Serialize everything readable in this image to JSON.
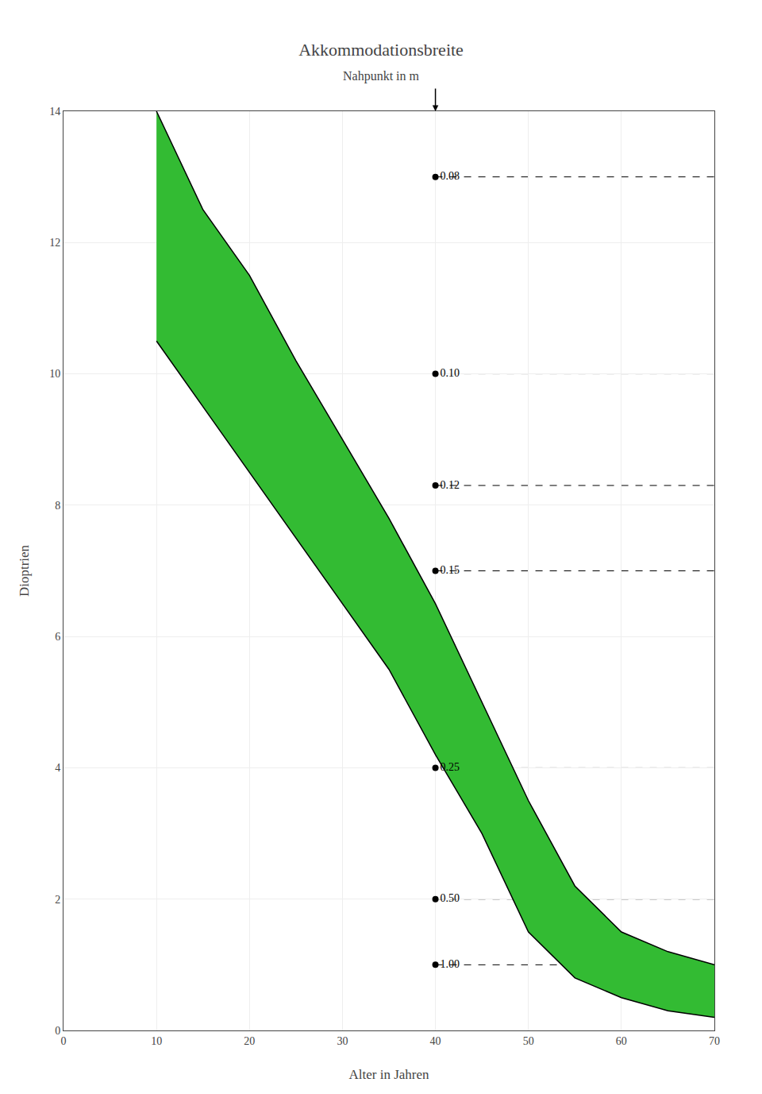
{
  "chart_data": {
    "type": "area",
    "title": "Akkommodationsbreite",
    "subtitle": "Nahpunkt in m",
    "x_label": "Alter in Jahren",
    "y_label": "Dioptrien",
    "x": [
      10,
      15,
      20,
      25,
      30,
      35,
      40,
      45,
      50,
      55,
      60,
      65,
      70
    ],
    "series": [
      {
        "type": "line",
        "color": "#000000",
        "values": [
          14.0,
          12.5,
          11.5,
          10.2,
          9.0,
          7.8,
          6.5,
          5.0,
          3.5,
          2.2,
          1.5,
          1.2,
          1.0
        ]
      },
      {
        "type": "line",
        "color": "#000000",
        "values": [
          10.5,
          9.5,
          8.5,
          7.5,
          6.5,
          5.5,
          4.2,
          3.0,
          1.5,
          0.8,
          0.5,
          0.3,
          0.2
        ]
      }
    ],
    "color": "#33bb33",
    "annotations": [
      {
        "x": 40,
        "y": 13.0,
        "text": "0.08"
      },
      {
        "x": 40,
        "y": 10.0,
        "text": "0.10"
      },
      {
        "x": 40,
        "y": 8.3,
        "text": "0.12"
      },
      {
        "x": 40,
        "y": 7.0,
        "text": "0.15"
      },
      {
        "x": 40,
        "y": 4.0,
        "text": "0.25"
      },
      {
        "x": 40,
        "y": 2.0,
        "text": "0.50"
      },
      {
        "x": 40,
        "y": 1.0,
        "text": "1.00"
      }
    ],
    "xlim": [
      0,
      70
    ],
    "ylim": [
      0,
      14
    ],
    "xticks": [
      0,
      10,
      20,
      30,
      40,
      50,
      60,
      70
    ],
    "yticks": [
      0,
      2,
      4,
      6,
      8,
      10,
      12,
      14
    ],
    "grid": true
  }
}
